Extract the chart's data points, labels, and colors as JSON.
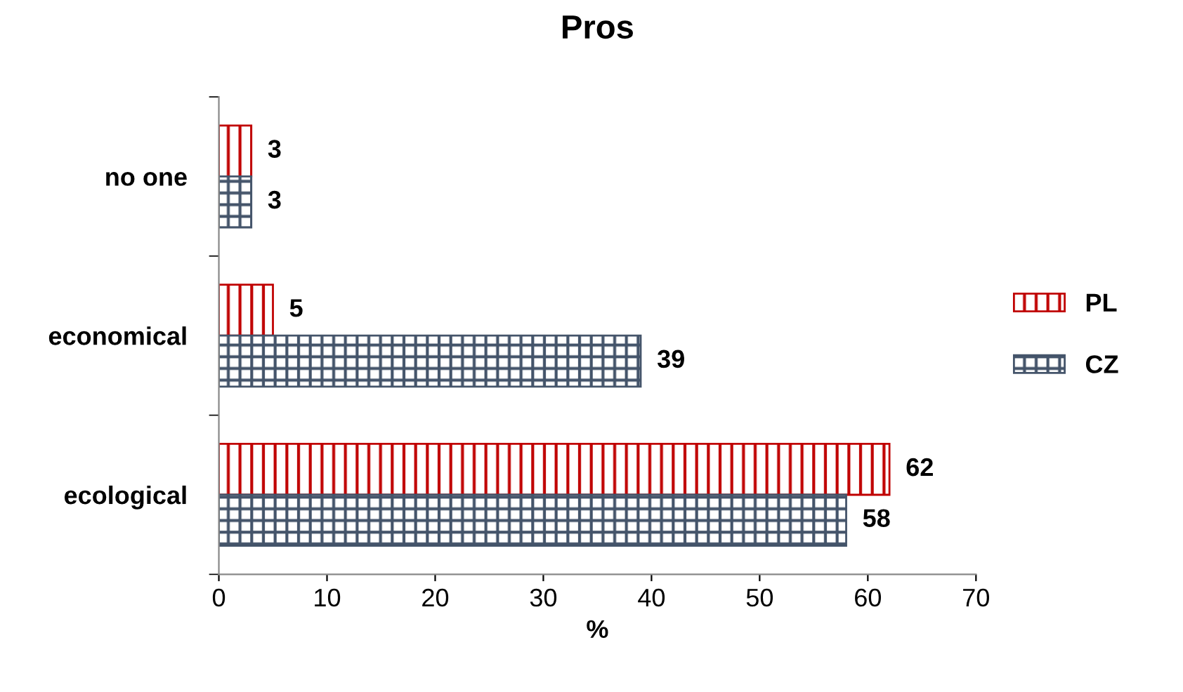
{
  "chart_data": {
    "type": "bar",
    "orientation": "horizontal",
    "title": "Pros",
    "xlabel": "%",
    "categories": [
      "no one",
      "economical",
      "ecological"
    ],
    "series": [
      {
        "name": "PL",
        "color": "#c00000",
        "values": [
          3,
          5,
          62
        ]
      },
      {
        "name": "CZ",
        "color": "#44546a",
        "values": [
          3,
          39,
          58
        ]
      }
    ],
    "xlim": [
      0,
      70
    ],
    "xticks": [
      0,
      10,
      20,
      30,
      40,
      50,
      60,
      70
    ],
    "data_labels": true,
    "legend": "right",
    "grid": false
  }
}
